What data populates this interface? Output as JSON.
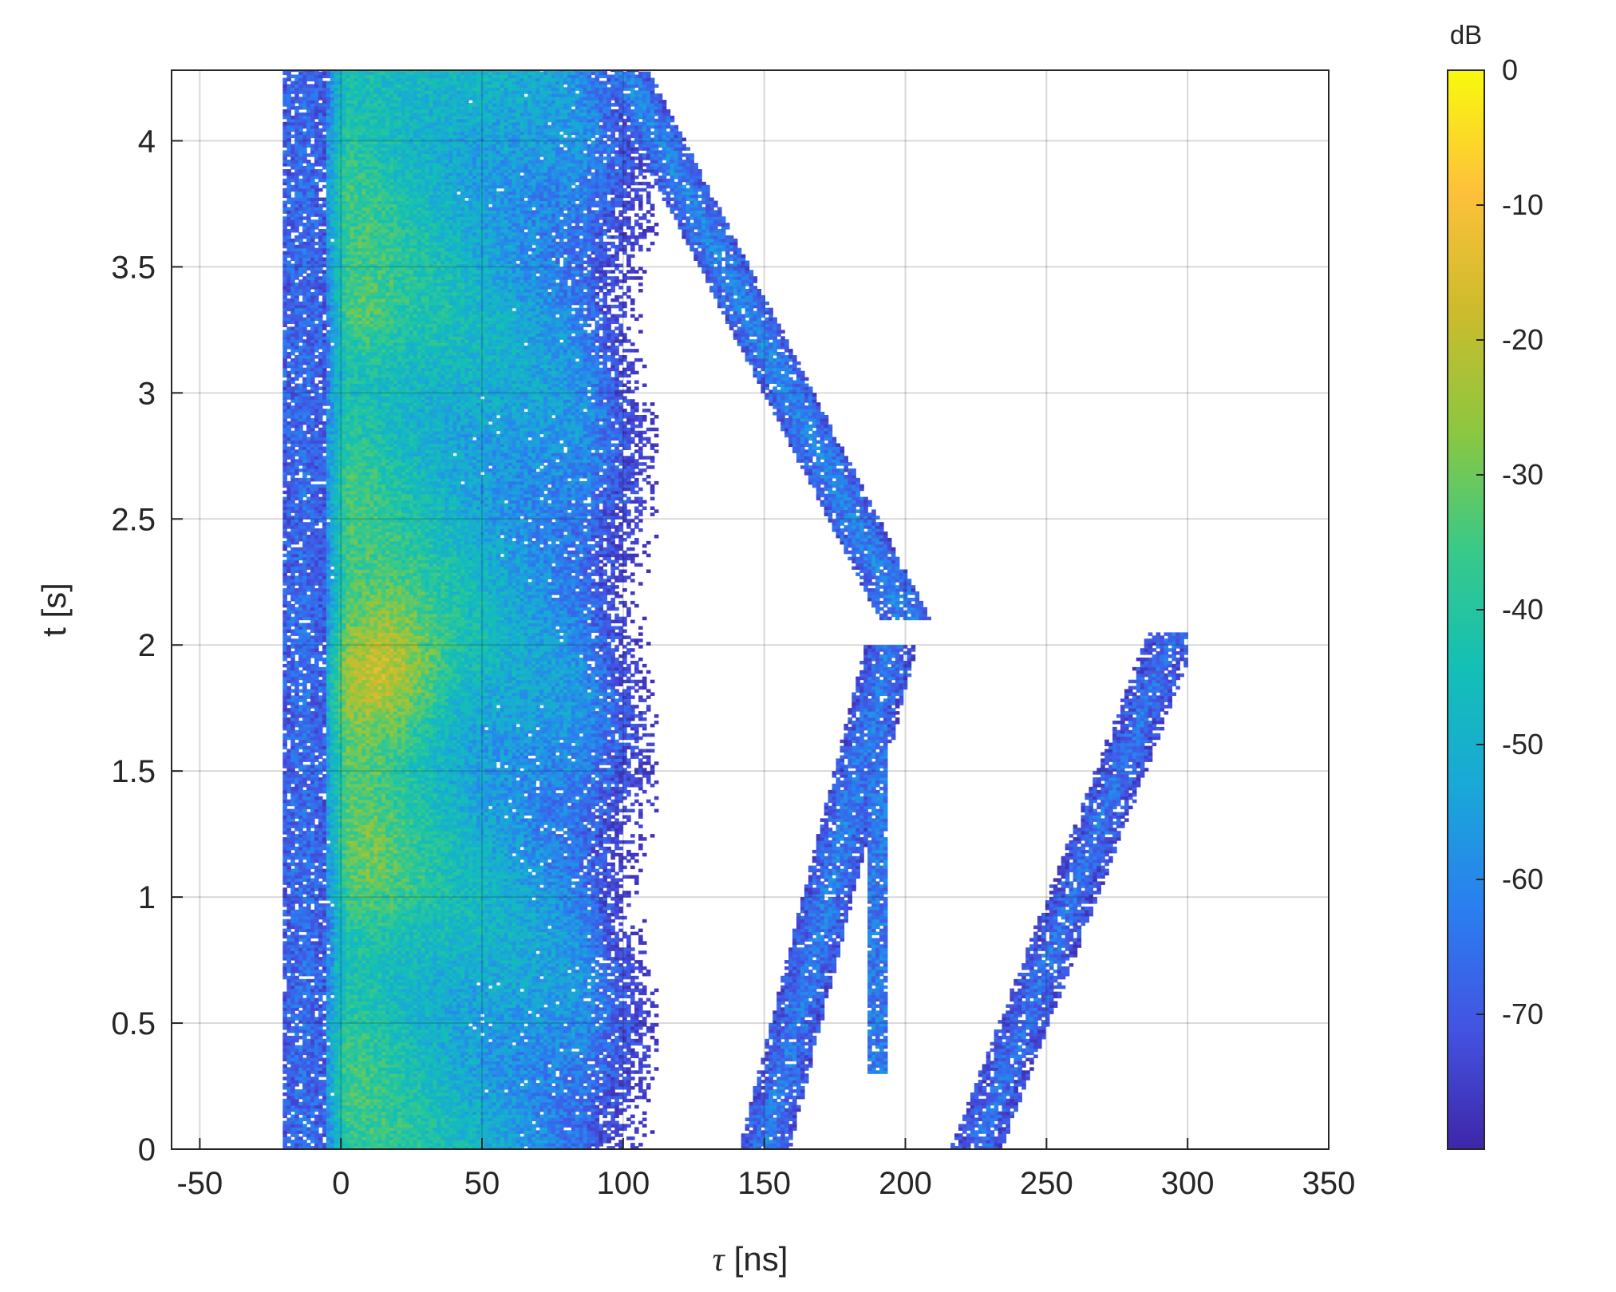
{
  "chart_data": {
    "type": "heatmap",
    "title": "",
    "xlabel_symbol": "τ",
    "xlabel_unit": "[ns]",
    "ylabel": "t [s]",
    "xlim": [
      -60,
      350
    ],
    "ylim": [
      0,
      4.28
    ],
    "x_ticks": [
      -50,
      0,
      50,
      100,
      150,
      200,
      250,
      300,
      350
    ],
    "y_ticks": [
      0,
      0.5,
      1,
      1.5,
      2,
      2.5,
      3,
      3.5,
      4
    ],
    "x_tick_labels": [
      "-50",
      "0",
      "50",
      "100",
      "150",
      "200",
      "250",
      "300",
      "350"
    ],
    "y_tick_labels": [
      "0",
      "0.5",
      "1",
      "1.5",
      "2",
      "2.5",
      "3",
      "3.5",
      "4"
    ],
    "grid": true,
    "colorbar": {
      "title": "dB",
      "range": [
        -80,
        0
      ],
      "ticks": [
        0,
        -10,
        -20,
        -30,
        -40,
        -50,
        -60,
        -70
      ],
      "tick_labels": [
        "0",
        "-10",
        "-20",
        "-30",
        "-40",
        "-50",
        "-60",
        "-70"
      ],
      "colormap": "parula",
      "colormap_stops": [
        "#3e26a8",
        "#4353e2",
        "#2a7ef0",
        "#1aa7d8",
        "#13bfb6",
        "#39c988",
        "#8dc73f",
        "#cdbb2d",
        "#fec13a",
        "#f8fa0d"
      ]
    },
    "threshold_db": -80,
    "features": [
      {
        "name": "LOS component",
        "tau_ns": [
          -2,
          2
        ],
        "t_s": [
          0,
          4.28
        ],
        "level_db": -52
      },
      {
        "name": "main cluster",
        "tau_ns": [
          0,
          110
        ],
        "t_s": [
          0,
          4.28
        ],
        "peak_tau_ns": 15,
        "peak_t_s": 1.9,
        "peak_db": -12
      },
      {
        "name": "secondary peak",
        "tau_ns": 10,
        "t_s": 1.1,
        "level_db": -35
      },
      {
        "name": "secondary peak",
        "tau_ns": 8,
        "t_s": 3.3,
        "level_db": -36
      },
      {
        "name": "scatter band",
        "tau_ns": [
          -20,
          -5
        ],
        "t_s": [
          0,
          4.28
        ],
        "level_db": -66
      },
      {
        "name": "drifting path 1",
        "tau_start_ns": 100,
        "t_start_s": 4.28,
        "tau_end_ns": 200,
        "t_end_s": 2.1,
        "level_db": -60
      },
      {
        "name": "drifting path 2",
        "tau_start_ns": 150,
        "t_start_s": 0,
        "tau_end_ns": 195,
        "t_end_s": 2.0,
        "level_db": -62
      },
      {
        "name": "drifting path 3",
        "tau_start_ns": 225,
        "t_start_s": 0,
        "tau_end_ns": 295,
        "t_end_s": 2.05,
        "level_db": -64
      },
      {
        "name": "vertical path",
        "tau_ns": 190,
        "t_s": [
          0.3,
          1.7
        ],
        "level_db": -64
      }
    ]
  }
}
